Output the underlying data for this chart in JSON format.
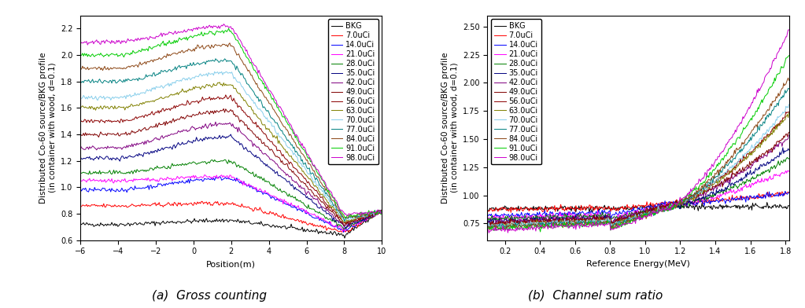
{
  "title_a": "(a)  Gross counting",
  "title_b": "(b)  Channel sum ratio",
  "ylabel": "Distributed Co-60 source/BKG profile\n(in container with wood, d=0.1)",
  "xlabel_a": "Position(m)",
  "xlabel_b": "Reference Energy(MeV)",
  "xlim_a": [
    -6,
    10
  ],
  "ylim_a": [
    0.6,
    2.3
  ],
  "xlim_b": [
    0.1,
    1.82
  ],
  "ylim_b": [
    0.6,
    2.6
  ],
  "series_labels": [
    "BKG",
    "7.0uCi",
    "14.0uCi",
    "21.0uCi",
    "28.0uCi",
    "35.0uCi",
    "42.0uCi",
    "49.0uCi",
    "56.0uCi",
    "63.0uCi",
    "70.0uCi",
    "77.0uCi",
    "84.0uCi",
    "91.0uCi",
    "98.0uCi"
  ],
  "series_colors": [
    "#000000",
    "#ff0000",
    "#0000ff",
    "#ff00ff",
    "#008000",
    "#000080",
    "#800080",
    "#800000",
    "#8B0000",
    "#808000",
    "#87CEEB",
    "#008080",
    "#8B4513",
    "#00cc00",
    "#cc00cc"
  ],
  "legend_fontsize": 7,
  "axis_fontsize": 8,
  "tick_fontsize": 7
}
